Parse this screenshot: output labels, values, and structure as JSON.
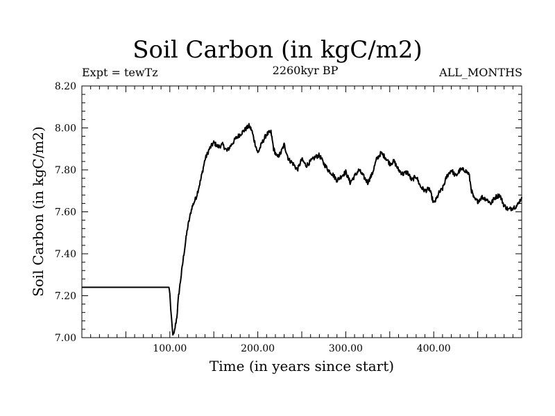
{
  "header": {
    "title": "Soil Carbon (in kgC/m2)",
    "expt": "Expt = tewTz",
    "subtitle": "2260kyr BP",
    "months": "ALL_MONTHS"
  },
  "chart_data": {
    "type": "line",
    "title": "Soil Carbon (in kgC/m2)",
    "xlabel": "Time (in years since start)",
    "ylabel": "Soil Carbon (in kgC/m2)",
    "xlim": [
      0,
      500
    ],
    "ylim": [
      7.0,
      8.2
    ],
    "x_ticks": [
      100,
      200,
      300,
      400
    ],
    "x_tick_labels": [
      "100.00",
      "200.00",
      "300.00",
      "400.00"
    ],
    "y_ticks": [
      7.0,
      7.2,
      7.4,
      7.6,
      7.8,
      8.0,
      8.2
    ],
    "y_tick_labels": [
      "7.00",
      "7.20",
      "7.40",
      "7.60",
      "7.80",
      "8.00",
      "8.20"
    ],
    "grid": false,
    "series": [
      {
        "name": "Soil Carbon",
        "color": "#000000",
        "x": [
          0,
          99,
          100,
          101,
          102,
          103,
          104,
          105,
          106,
          108,
          110,
          113,
          116,
          120,
          125,
          130,
          135,
          140,
          145,
          150,
          155,
          160,
          165,
          170,
          175,
          180,
          185,
          190,
          193,
          196,
          200,
          205,
          210,
          215,
          218,
          222,
          226,
          230,
          235,
          240,
          245,
          250,
          255,
          260,
          265,
          270,
          275,
          280,
          285,
          290,
          295,
          300,
          305,
          310,
          315,
          320,
          325,
          330,
          335,
          340,
          345,
          350,
          355,
          360,
          365,
          370,
          375,
          380,
          385,
          390,
          395,
          400,
          403,
          406,
          410,
          415,
          420,
          425,
          430,
          435,
          440,
          443,
          446,
          450,
          455,
          460,
          465,
          470,
          475,
          480,
          485,
          490,
          495,
          500
        ],
        "y": [
          7.24,
          7.24,
          7.21,
          7.14,
          7.08,
          7.03,
          7.01,
          7.02,
          7.05,
          7.1,
          7.2,
          7.3,
          7.4,
          7.52,
          7.62,
          7.67,
          7.75,
          7.85,
          7.9,
          7.93,
          7.91,
          7.92,
          7.89,
          7.92,
          7.95,
          7.97,
          7.99,
          8.01,
          7.99,
          7.94,
          7.88,
          7.93,
          7.97,
          7.98,
          7.9,
          7.86,
          7.88,
          7.92,
          7.85,
          7.83,
          7.8,
          7.85,
          7.82,
          7.84,
          7.86,
          7.87,
          7.83,
          7.8,
          7.78,
          7.75,
          7.77,
          7.79,
          7.74,
          7.77,
          7.8,
          7.77,
          7.74,
          7.78,
          7.85,
          7.88,
          7.86,
          7.83,
          7.84,
          7.8,
          7.78,
          7.79,
          7.75,
          7.77,
          7.72,
          7.7,
          7.71,
          7.64,
          7.66,
          7.69,
          7.71,
          7.77,
          7.8,
          7.77,
          7.8,
          7.8,
          7.78,
          7.7,
          7.66,
          7.65,
          7.67,
          7.66,
          7.64,
          7.67,
          7.68,
          7.63,
          7.61,
          7.62,
          7.63,
          7.67
        ]
      }
    ]
  }
}
